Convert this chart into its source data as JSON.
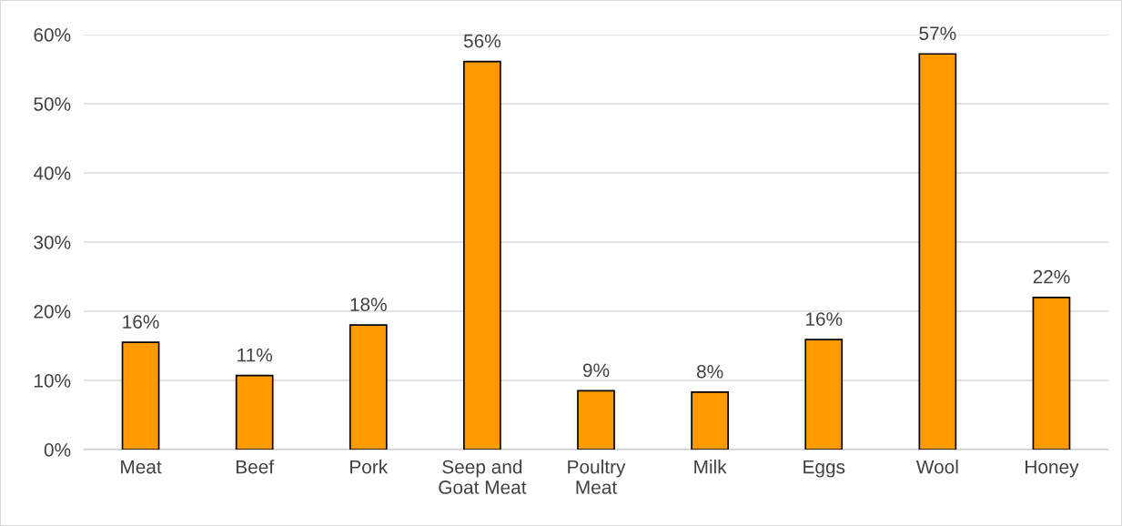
{
  "chart_data": {
    "type": "bar",
    "categories": [
      "Meat",
      "Beef",
      "Pork",
      "Seep and\nGoat Meat",
      "Poultry\nMeat",
      "Milk",
      "Eggs",
      "Wool",
      "Honey"
    ],
    "values": [
      15.5,
      10.7,
      18.0,
      56.1,
      8.5,
      8.3,
      15.9,
      57.2,
      22.0
    ],
    "value_labels": [
      "16%",
      "11%",
      "18%",
      "56%",
      "9%",
      "8%",
      "16%",
      "57%",
      "22%"
    ],
    "color": "#ff9900",
    "ylim": [
      0,
      60
    ],
    "yticks": [
      {
        "value": 0,
        "label": "0%"
      },
      {
        "value": 10,
        "label": "10%"
      },
      {
        "value": 20,
        "label": "20%"
      },
      {
        "value": 30,
        "label": "30%"
      },
      {
        "value": 40,
        "label": "40%"
      },
      {
        "value": 50,
        "label": "50%"
      },
      {
        "value": 60,
        "label": "60%"
      }
    ],
    "grid": "y",
    "legend": false
  }
}
